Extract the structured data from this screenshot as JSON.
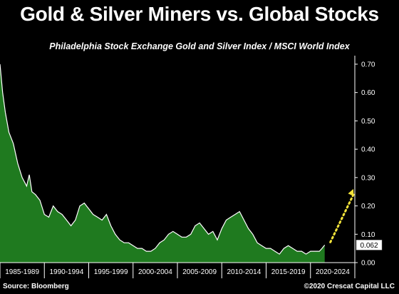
{
  "title": "Gold & Silver Miners vs. Global Stocks",
  "subtitle": "Philadelphia Stock Exchange Gold and Silver Index / MSCI World Index",
  "source": "Source: Bloomberg",
  "copyright": "©2020 Crescat Capital LLC",
  "colors": {
    "background": "#000000",
    "area_fill": "#1f7a1f",
    "line": "#ffffff",
    "arrow": "#f2e33a"
  },
  "chart_data": {
    "type": "area",
    "ylim": [
      0,
      0.72
    ],
    "y_ticks": [
      "0.00",
      "0.10",
      "0.20",
      "0.30",
      "0.40",
      "0.50",
      "0.60",
      "0.70"
    ],
    "x_ticks": [
      "1985-1989",
      "1990-1994",
      "1995-1999",
      "2000-2004",
      "2005-2009",
      "2010-2014",
      "2015-2019",
      "2020-2024"
    ],
    "xlim": [
      1984,
      2024
    ],
    "last_value_label": "0.062",
    "grid": false,
    "series": [
      {
        "x": [
          1984.0,
          1984.3,
          1984.6,
          1985.0,
          1985.5,
          1986.0,
          1986.5,
          1987.0,
          1987.3,
          1987.6,
          1988.0,
          1988.5,
          1989.0,
          1989.5,
          1990.0,
          1990.5,
          1991.0,
          1991.5,
          1992.0,
          1992.5,
          1993.0,
          1993.5,
          1994.0,
          1994.5,
          1995.0,
          1995.5,
          1996.0,
          1996.5,
          1997.0,
          1997.5,
          1998.0,
          1998.5,
          1999.0,
          1999.5,
          2000.0,
          2000.5,
          2001.0,
          2001.5,
          2002.0,
          2002.5,
          2003.0,
          2003.5,
          2004.0,
          2004.5,
          2005.0,
          2005.5,
          2006.0,
          2006.5,
          2007.0,
          2007.5,
          2008.0,
          2008.5,
          2009.0,
          2009.5,
          2010.0,
          2010.5,
          2011.0,
          2011.5,
          2012.0,
          2012.5,
          2013.0,
          2013.5,
          2014.0,
          2014.5,
          2015.0,
          2015.5,
          2016.0,
          2016.5,
          2017.0,
          2017.5,
          2018.0,
          2018.5,
          2019.0,
          2019.5,
          2020.0,
          2020.3,
          2020.6
        ],
        "values": [
          0.7,
          0.6,
          0.53,
          0.46,
          0.42,
          0.35,
          0.3,
          0.27,
          0.31,
          0.25,
          0.24,
          0.22,
          0.17,
          0.16,
          0.2,
          0.18,
          0.17,
          0.15,
          0.13,
          0.15,
          0.2,
          0.21,
          0.19,
          0.17,
          0.16,
          0.15,
          0.17,
          0.13,
          0.1,
          0.08,
          0.07,
          0.07,
          0.06,
          0.05,
          0.05,
          0.04,
          0.04,
          0.05,
          0.07,
          0.08,
          0.1,
          0.11,
          0.1,
          0.09,
          0.09,
          0.1,
          0.13,
          0.14,
          0.12,
          0.1,
          0.11,
          0.08,
          0.12,
          0.15,
          0.16,
          0.17,
          0.18,
          0.15,
          0.12,
          0.1,
          0.07,
          0.06,
          0.05,
          0.05,
          0.04,
          0.03,
          0.05,
          0.06,
          0.05,
          0.04,
          0.04,
          0.03,
          0.04,
          0.04,
          0.04,
          0.05,
          0.062
        ]
      }
    ],
    "projection_arrow": {
      "x": [
        2020.6,
        2024.0
      ],
      "values": [
        0.062,
        0.26
      ]
    }
  }
}
